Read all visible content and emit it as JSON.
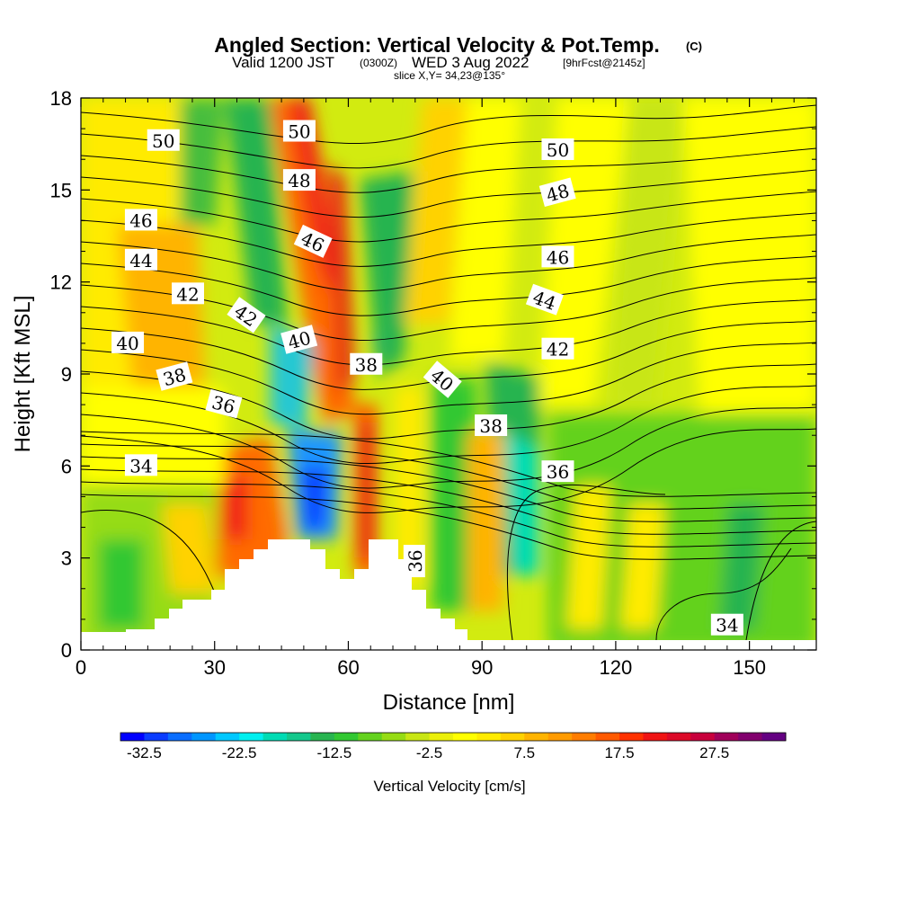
{
  "header": {
    "title_main": "Angled Section: Vertical Velocity & Pot.Temp.",
    "title_unit": "(C)",
    "subtitle_a": "Valid 1200 JST",
    "subtitle_b": "(0300Z)",
    "subtitle_c": "WED 3 Aug 2022",
    "subtitle_d": "[9hrFcst@2145z]",
    "slice": "slice X,Y= 34,23@135°"
  },
  "chart_data": {
    "type": "heatmap",
    "xlabel": "Distance [nm]",
    "ylabel": "Height [Kft MSL]",
    "xlim": [
      0,
      165
    ],
    "ylim": [
      0,
      18
    ],
    "x_ticks": [
      0,
      30,
      60,
      90,
      120,
      150
    ],
    "y_ticks": [
      0,
      3,
      6,
      9,
      12,
      15,
      18
    ],
    "colorbar": {
      "label": "Vertical Velocity [cm/s]",
      "min": -35,
      "max": 35,
      "step": 2.5,
      "tick_labels": [
        "-32.5",
        "-22.5",
        "-12.5",
        "-2.5",
        "7.5",
        "17.5",
        "27.5"
      ],
      "colors": [
        "#0000ff",
        "#0a3cff",
        "#0a6eff",
        "#0096ff",
        "#00c8ff",
        "#00f0f0",
        "#00dcb4",
        "#14c88c",
        "#28b450",
        "#32c832",
        "#64d21e",
        "#96dc14",
        "#c8e614",
        "#ebf00a",
        "#ffff00",
        "#ffeb00",
        "#ffd200",
        "#ffb400",
        "#ff9b00",
        "#ff7d00",
        "#ff5a00",
        "#ff3200",
        "#f01414",
        "#dc0a28",
        "#c8003c",
        "#a0005a",
        "#82006e",
        "#640082"
      ]
    },
    "theta_contours": {
      "unit": "C",
      "labels": [
        {
          "text": "50",
          "x": 18.5,
          "y": 16.6,
          "angle": 0
        },
        {
          "text": "50",
          "x": 49,
          "y": 16.9,
          "angle": 0
        },
        {
          "text": "50",
          "x": 107,
          "y": 16.3,
          "angle": 0
        },
        {
          "text": "48",
          "x": 49,
          "y": 15.3,
          "angle": 0
        },
        {
          "text": "48",
          "x": 107,
          "y": 14.9,
          "angle": -15
        },
        {
          "text": "46",
          "x": 13.5,
          "y": 14.0,
          "angle": 0
        },
        {
          "text": "46",
          "x": 52,
          "y": 13.3,
          "angle": 25
        },
        {
          "text": "46",
          "x": 107,
          "y": 12.8,
          "angle": 0
        },
        {
          "text": "44",
          "x": 13.5,
          "y": 12.7,
          "angle": 0
        },
        {
          "text": "44",
          "x": 104,
          "y": 11.4,
          "angle": 20
        },
        {
          "text": "42",
          "x": 24,
          "y": 11.6,
          "angle": 0
        },
        {
          "text": "42",
          "x": 37,
          "y": 10.9,
          "angle": 35
        },
        {
          "text": "42",
          "x": 107,
          "y": 9.8,
          "angle": 0
        },
        {
          "text": "40",
          "x": 10.5,
          "y": 10.0,
          "angle": 0
        },
        {
          "text": "40",
          "x": 49,
          "y": 10.1,
          "angle": -15
        },
        {
          "text": "40",
          "x": 81,
          "y": 8.8,
          "angle": 40
        },
        {
          "text": "38",
          "x": 21,
          "y": 8.9,
          "angle": -15
        },
        {
          "text": "38",
          "x": 64,
          "y": 9.3,
          "angle": 0
        },
        {
          "text": "38",
          "x": 92,
          "y": 7.3,
          "angle": 0
        },
        {
          "text": "36",
          "x": 32,
          "y": 8.0,
          "angle": 15
        },
        {
          "text": "36",
          "x": 107,
          "y": 5.8,
          "angle": 0
        },
        {
          "text": "36",
          "x": 75,
          "y": 2.9,
          "angle": -90
        },
        {
          "text": "34",
          "x": 13.5,
          "y": 6.0,
          "angle": 0
        },
        {
          "text": "34",
          "x": 145,
          "y": 0.8,
          "angle": 0
        }
      ]
    }
  }
}
